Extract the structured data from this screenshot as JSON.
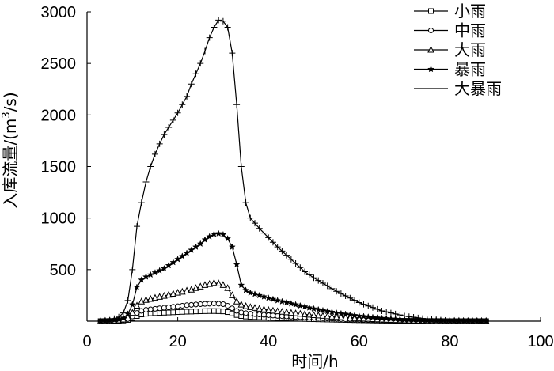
{
  "chart_data": {
    "type": "line",
    "xlabel": "时间/h",
    "ylabel": "入库流量/(m³/s)",
    "ylabel_parts": [
      "入库流量/(m",
      "3",
      "/s)"
    ],
    "xlim": [
      0,
      100
    ],
    "ylim": [
      0,
      3000
    ],
    "xticks": [
      0,
      20,
      40,
      60,
      80,
      100
    ],
    "yticks": [
      500,
      1000,
      1500,
      2000,
      2500,
      3000
    ],
    "grid": false,
    "legend_position": "top-right",
    "x": [
      3,
      5,
      7,
      8,
      9,
      10,
      11,
      12,
      13,
      14,
      15,
      16,
      17,
      18,
      19,
      20,
      21,
      22,
      23,
      24,
      25,
      26,
      27,
      28,
      29,
      30,
      31,
      32,
      33,
      34,
      35,
      36,
      38,
      40,
      42,
      45,
      48,
      50,
      55,
      60,
      65,
      70,
      75,
      80,
      85,
      88
    ],
    "series": [
      {
        "name": "小雨",
        "marker": "square",
        "values": [
          0,
          1,
          3,
          6,
          12,
          28,
          50,
          65,
          72,
          76,
          78,
          80,
          82,
          84,
          86,
          88,
          90,
          92,
          93,
          95,
          96,
          97,
          98,
          98,
          97,
          95,
          88,
          75,
          60,
          50,
          45,
          42,
          38,
          34,
          30,
          26,
          22,
          19,
          14,
          9,
          5,
          3,
          1,
          0,
          0,
          0
        ]
      },
      {
        "name": "中雨",
        "marker": "circle",
        "values": [
          0,
          2,
          5,
          10,
          20,
          45,
          80,
          100,
          110,
          115,
          120,
          125,
          130,
          135,
          140,
          145,
          150,
          155,
          158,
          162,
          165,
          168,
          170,
          172,
          170,
          165,
          150,
          125,
          100,
          85,
          78,
          72,
          65,
          58,
          51,
          43,
          36,
          32,
          22,
          14,
          8,
          4,
          2,
          0,
          0,
          0
        ]
      },
      {
        "name": "大雨",
        "marker": "triangle",
        "values": [
          0,
          3,
          8,
          15,
          35,
          80,
          150,
          190,
          205,
          215,
          225,
          235,
          245,
          255,
          265,
          275,
          285,
          295,
          305,
          320,
          335,
          350,
          360,
          370,
          365,
          350,
          320,
          250,
          190,
          160,
          145,
          135,
          120,
          107,
          95,
          80,
          66,
          58,
          40,
          26,
          15,
          8,
          3,
          1,
          0,
          0
        ]
      },
      {
        "name": "暴雨",
        "marker": "star",
        "values": [
          0,
          5,
          15,
          30,
          70,
          160,
          330,
          400,
          430,
          450,
          470,
          490,
          510,
          540,
          570,
          600,
          630,
          660,
          690,
          720,
          750,
          790,
          820,
          845,
          850,
          840,
          800,
          720,
          550,
          350,
          300,
          275,
          250,
          225,
          200,
          170,
          140,
          120,
          80,
          50,
          28,
          14,
          6,
          2,
          0,
          0
        ]
      },
      {
        "name": "大暴雨",
        "marker": "plus",
        "values": [
          0,
          10,
          40,
          80,
          200,
          500,
          920,
          1150,
          1350,
          1500,
          1620,
          1720,
          1810,
          1880,
          1950,
          2020,
          2100,
          2180,
          2300,
          2400,
          2500,
          2620,
          2750,
          2850,
          2920,
          2910,
          2850,
          2600,
          2100,
          1500,
          1150,
          1000,
          900,
          810,
          720,
          600,
          480,
          420,
          290,
          180,
          100,
          50,
          20,
          5,
          0,
          0
        ]
      }
    ]
  }
}
